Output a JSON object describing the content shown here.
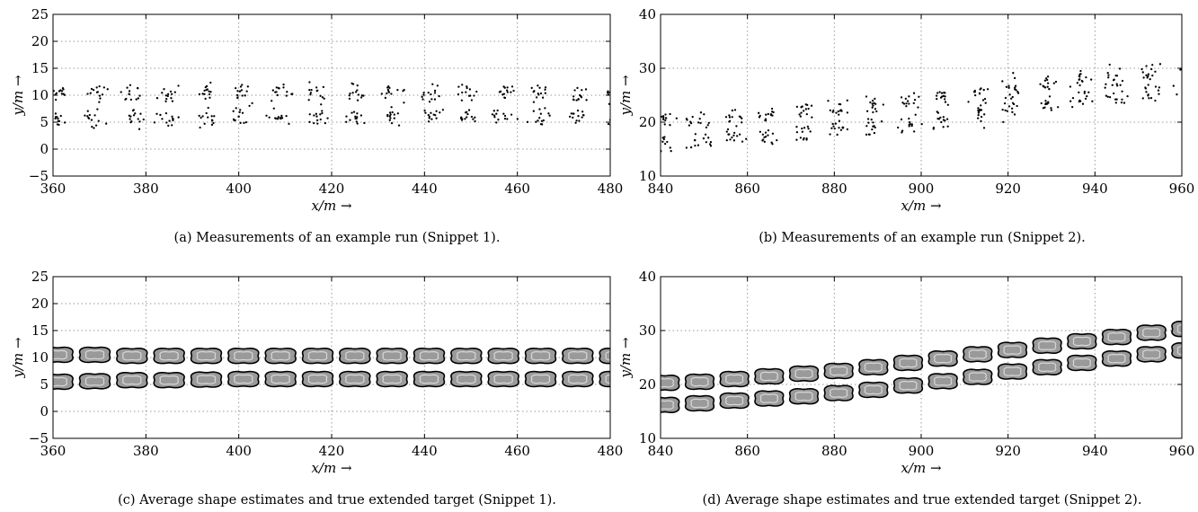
{
  "chart_data": [
    {
      "type": "scatter",
      "xlabel": "x/m →",
      "ylabel": "y/m →",
      "xlim": [
        360,
        480
      ],
      "ylim": [
        -5,
        25
      ],
      "xticks": [
        "360",
        "380",
        "400",
        "420",
        "440",
        "460",
        "480"
      ],
      "yticks": [
        "−5",
        "0",
        "5",
        "10",
        "15",
        "20",
        "25"
      ],
      "grid": true,
      "caption": "(a) Measurements of an example run (Snippet 1).",
      "clusters": {
        "x": [
          361,
          369,
          377,
          385,
          393,
          401,
          409,
          417,
          425,
          433,
          441,
          449,
          457,
          465,
          473,
          481
        ],
        "y_upper": [
          10.5,
          10.5,
          10.3,
          10.3,
          10.3,
          10.3,
          10.3,
          10.3,
          10.3,
          10.3,
          10.3,
          10.3,
          10.3,
          10.3,
          10.3,
          10.3
        ],
        "y_lower": [
          5.5,
          5.6,
          5.8,
          5.8,
          5.9,
          6.0,
          6.0,
          6.0,
          6.0,
          6.0,
          6.0,
          6.0,
          6.0,
          6.0,
          6.0,
          6.0
        ],
        "spread_x": 2.2,
        "spread_y": 1.5,
        "points_per_cluster": 14
      }
    },
    {
      "type": "scatter",
      "xlabel": "x/m →",
      "ylabel": "y/m →",
      "xlim": [
        840,
        960
      ],
      "ylim": [
        10,
        40
      ],
      "xticks": [
        "840",
        "860",
        "880",
        "900",
        "920",
        "940",
        "960"
      ],
      "yticks": [
        "10",
        "20",
        "30",
        "40"
      ],
      "grid": true,
      "caption": "(b) Measurements of an example run (Snippet 2).",
      "clusters": {
        "x": [
          841,
          849,
          857,
          865,
          873,
          881,
          889,
          897,
          905,
          913,
          921,
          929,
          937,
          945,
          953,
          961
        ],
        "y_upper": [
          20.3,
          20.5,
          21.0,
          21.5,
          22.0,
          22.5,
          23.2,
          24.0,
          24.8,
          25.6,
          26.4,
          27.2,
          28.0,
          28.8,
          29.6,
          30.3
        ],
        "y_lower": [
          16.2,
          16.5,
          17.0,
          17.4,
          17.8,
          18.4,
          19.0,
          19.8,
          20.6,
          21.4,
          22.4,
          23.2,
          24.0,
          24.8,
          25.6,
          26.3
        ],
        "spread_x": 2.2,
        "spread_y": 1.7,
        "points_per_cluster": 14
      }
    },
    {
      "type": "other",
      "xlabel": "x/m →",
      "ylabel": "y/m →",
      "xlim": [
        360,
        480
      ],
      "ylim": [
        -5,
        25
      ],
      "xticks": [
        "360",
        "380",
        "400",
        "420",
        "440",
        "460",
        "480"
      ],
      "yticks": [
        "−5",
        "0",
        "5",
        "10",
        "15",
        "20",
        "25"
      ],
      "grid": true,
      "caption": "(c) Average shape estimates and true extended target (Snippet 1).",
      "shape_color": "#9a9a9a",
      "outline_color": "#000000",
      "shapes": {
        "x": [
          361,
          369,
          377,
          385,
          393,
          401,
          409,
          417,
          425,
          433,
          441,
          449,
          457,
          465,
          473,
          481
        ],
        "y_upper": [
          10.5,
          10.5,
          10.3,
          10.3,
          10.3,
          10.3,
          10.3,
          10.3,
          10.3,
          10.3,
          10.3,
          10.3,
          10.3,
          10.3,
          10.3,
          10.3
        ],
        "y_lower": [
          5.5,
          5.6,
          5.8,
          5.8,
          5.9,
          6.0,
          6.0,
          6.0,
          6.0,
          6.0,
          6.0,
          6.0,
          6.0,
          6.0,
          6.0,
          6.0
        ]
      }
    },
    {
      "type": "other",
      "xlabel": "x/m →",
      "ylabel": "y/m →",
      "xlim": [
        840,
        960
      ],
      "ylim": [
        10,
        40
      ],
      "xticks": [
        "840",
        "860",
        "880",
        "900",
        "920",
        "940",
        "960"
      ],
      "yticks": [
        "10",
        "20",
        "30",
        "40"
      ],
      "grid": true,
      "caption": "(d) Average shape estimates and true extended target (Snippet 2).",
      "shape_color": "#9a9a9a",
      "outline_color": "#000000",
      "shapes": {
        "x": [
          841,
          849,
          857,
          865,
          873,
          881,
          889,
          897,
          905,
          913,
          921,
          929,
          937,
          945,
          953,
          961
        ],
        "y_upper": [
          20.3,
          20.5,
          21.0,
          21.5,
          22.0,
          22.5,
          23.2,
          24.0,
          24.8,
          25.6,
          26.4,
          27.2,
          28.0,
          28.8,
          29.6,
          30.3
        ],
        "y_lower": [
          16.2,
          16.5,
          17.0,
          17.4,
          17.8,
          18.4,
          19.0,
          19.8,
          20.6,
          21.4,
          22.4,
          23.2,
          24.0,
          24.8,
          25.6,
          26.3
        ]
      }
    }
  ]
}
